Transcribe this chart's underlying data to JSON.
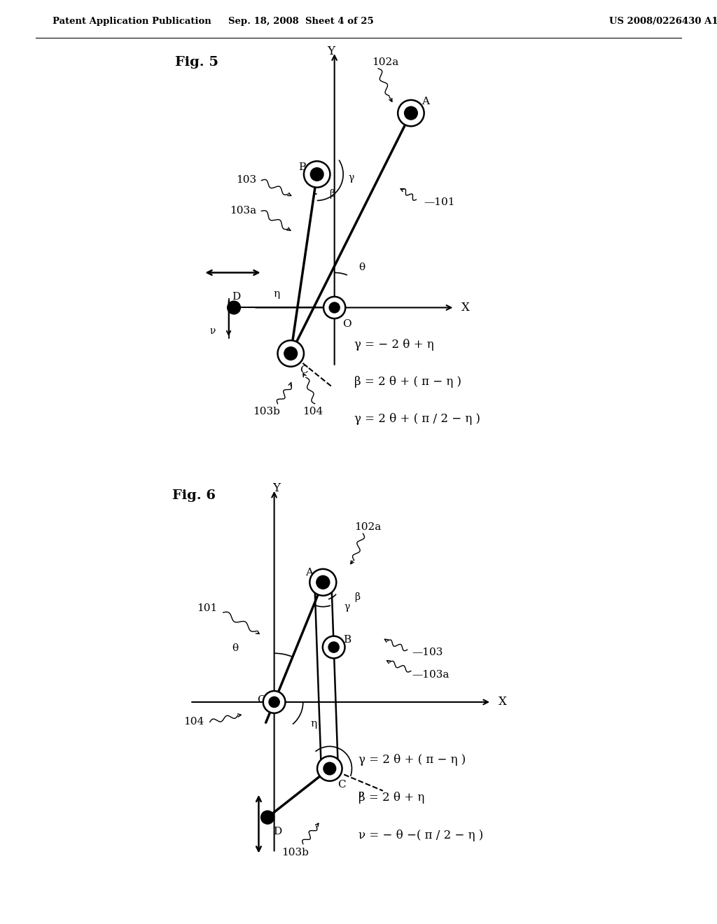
{
  "header_left": "Patent Application Publication",
  "header_mid": "Sep. 18, 2008  Sheet 4 of 25",
  "header_right": "US 2008/0226430 A1",
  "fig5_equations": [
    "γ = − 2 θ + η",
    "β = 2 θ + ( π − η )",
    "γ = 2 θ + ( π / 2 − η )"
  ],
  "fig6_equations": [
    "γ = 2 θ + ( π − η )",
    "β = 2 θ + η",
    "ν = − θ −( π / 2 − η )"
  ]
}
